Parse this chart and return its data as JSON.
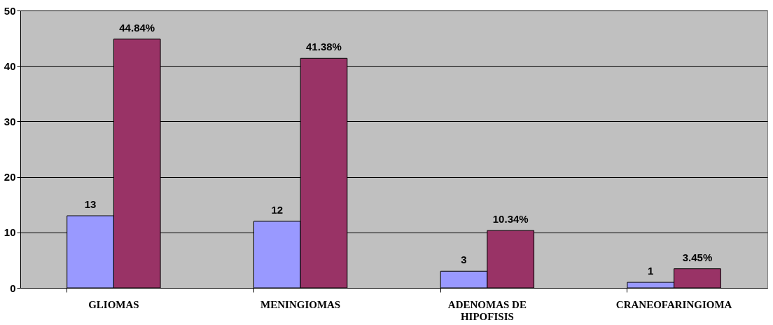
{
  "chart_data": {
    "type": "bar",
    "categories": [
      "GLIOMAS",
      "MENINGIOMAS",
      "ADENOMAS DE HIPOFISIS",
      "CRANEOFARINGIOMA"
    ],
    "series": [
      {
        "color": "#9999ff",
        "values": [
          13,
          12,
          3,
          1
        ],
        "value_labels": [
          "13",
          "12",
          "3",
          "1"
        ]
      },
      {
        "color": "#993366",
        "values": [
          44.84,
          41.38,
          10.34,
          3.45
        ],
        "value_labels": [
          "44.84%",
          "41.38%",
          "10.34%",
          "3.45%"
        ]
      }
    ],
    "ylim": [
      0,
      50
    ],
    "yticks": [
      0,
      10,
      20,
      30,
      40,
      50
    ],
    "grid": "y"
  }
}
